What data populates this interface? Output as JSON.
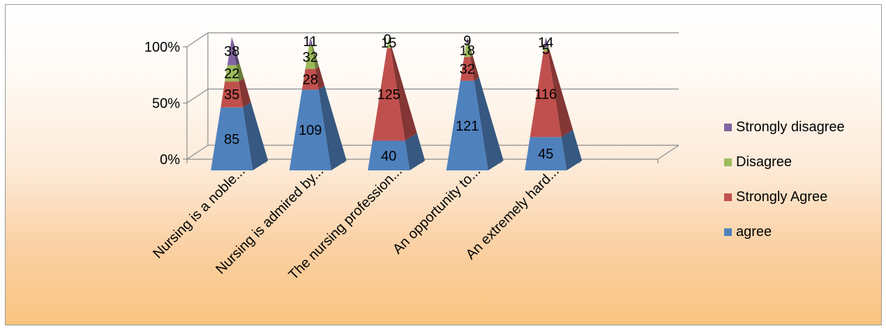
{
  "chart_data": {
    "type": "bar",
    "subtype": "100% stacked pyramid (3D)",
    "categories": [
      "Nursing is a noble...",
      "Nursing is admired by...",
      "The nursing profession...",
      "An opportunity to...",
      "An extremely hard..."
    ],
    "series": [
      {
        "name": "agree",
        "color": "#4f81bd",
        "values": [
          85,
          109,
          40,
          121,
          45
        ]
      },
      {
        "name": "Strongly Agree",
        "color": "#c0504d",
        "values": [
          35,
          28,
          125,
          32,
          116
        ]
      },
      {
        "name": "Disagree",
        "color": "#9bbb59",
        "values": [
          22,
          32,
          15,
          18,
          5
        ]
      },
      {
        "name": "Strongly disagree",
        "color": "#8064a2",
        "values": [
          38,
          11,
          0,
          9,
          14
        ]
      }
    ],
    "y_ticks": [
      "0%",
      "50%",
      "100%"
    ],
    "ylim": [
      0,
      100
    ],
    "grid": true,
    "legend_position": "right"
  }
}
